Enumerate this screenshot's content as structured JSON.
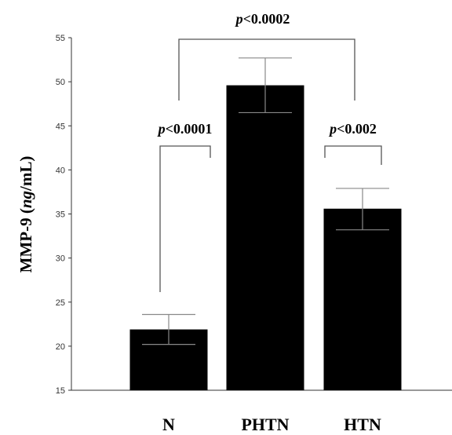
{
  "chart_data": {
    "type": "bar",
    "categories": [
      "N",
      "PHTN",
      "HTN"
    ],
    "values": [
      21.9,
      49.6,
      35.6
    ],
    "error_upper": [
      23.6,
      52.7,
      37.9
    ],
    "error_lower": [
      20.2,
      46.5,
      33.2
    ],
    "ylabel": "MMP-9 (ng/mL)",
    "ylabel_parts": {
      "prefix": "MMP-9 (",
      "italic": "ng",
      "suffix": "/mL)"
    },
    "ylim": [
      15,
      55
    ],
    "yticks": [
      15,
      20,
      25,
      30,
      35,
      40,
      45,
      50,
      55
    ],
    "bar_color": "#000000",
    "axis_color": "#333333",
    "bracket_color": "#555555",
    "grid": false,
    "legend": "none",
    "significance": [
      {
        "from": "N",
        "to": "PHTN",
        "label": "p<0.0001",
        "p": "p",
        "rest": "<0.0001"
      },
      {
        "from": "PHTN",
        "to": "HTN",
        "label": "p<0.002",
        "p": "p",
        "rest": "<0.002"
      },
      {
        "from": "N",
        "to": "HTN",
        "label": "p<0.0002",
        "p": "p",
        "rest": "<0.0002"
      }
    ]
  }
}
